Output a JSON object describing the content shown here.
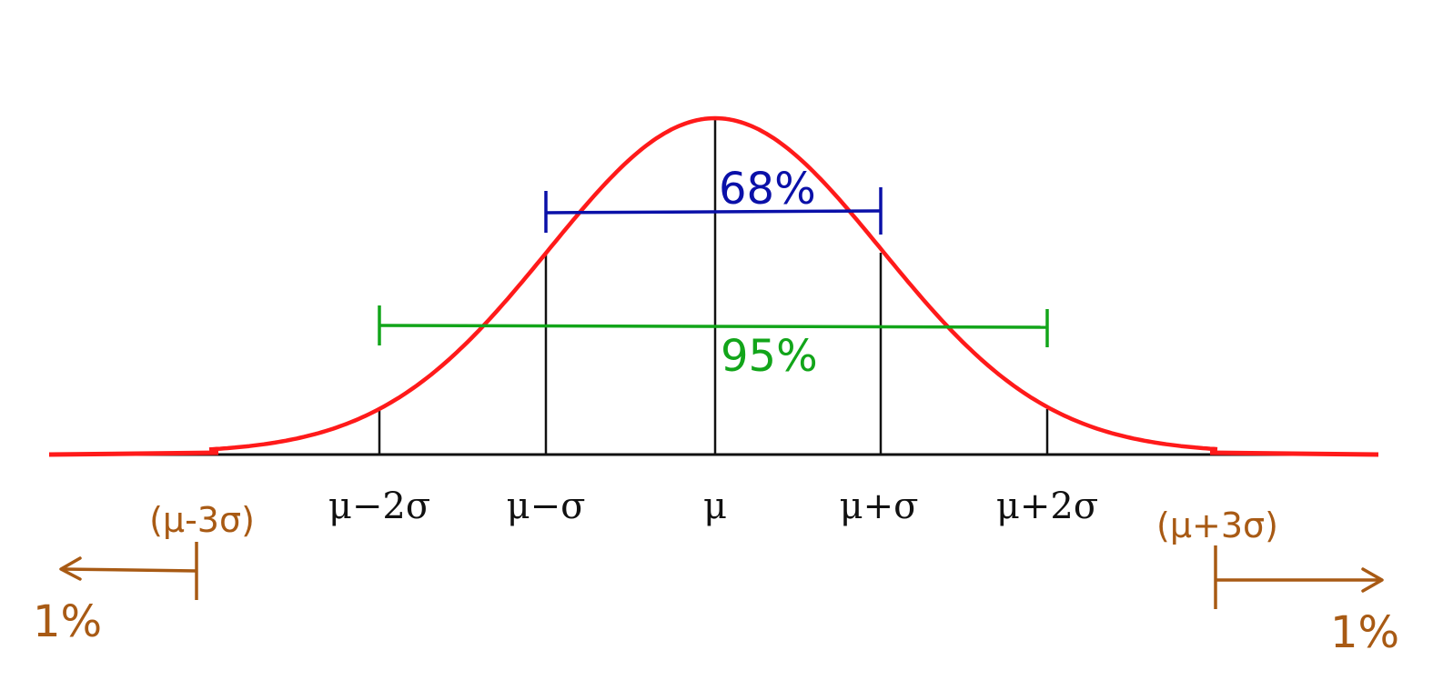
{
  "colors": {
    "curve": "#ff1a1a",
    "axis": "#111111",
    "one_sigma": "#0a10a8",
    "two_sigma": "#12a51a",
    "tail": "#a85a14"
  },
  "axis_labels": {
    "mu_minus_2sigma": "μ−2σ",
    "mu_minus_sigma": "μ−σ",
    "mu": "μ",
    "mu_plus_sigma": "μ+σ",
    "mu_plus_2sigma": "μ+2σ"
  },
  "intervals": {
    "one_sigma_pct": "68%",
    "two_sigma_pct": "95%"
  },
  "tails": {
    "left_bound": "(μ-3σ)",
    "right_bound": "(μ+3σ)",
    "left_pct": "1%",
    "right_pct": "1%"
  }
}
